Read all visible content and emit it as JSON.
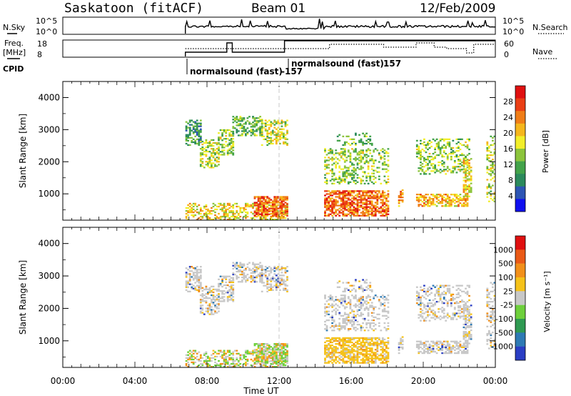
{
  "header": {
    "station": "Saskatoon (fitACF)",
    "beam": "Beam 01",
    "date": "12/Feb/2009"
  },
  "status_panels": {
    "nsky_label": "N.Sky",
    "freq_label_line1": "Freq.",
    "freq_label_line2": "[MHz]",
    "cpid_label": "CPID",
    "nsearch_label": "N.Search",
    "nave_label": "Nave",
    "nsky_ticks": [
      "10^5",
      "10^0"
    ],
    "nsearch_ticks": [
      "10^5",
      "10^0"
    ],
    "freq_ticks": [
      "18",
      "8"
    ],
    "nave_ticks": [
      "60",
      "0"
    ],
    "cpid_entries": [
      {
        "name": "normalsound (fast)",
        "id": "-157",
        "start_hour": 6.8
      },
      {
        "name": "normalsound (fast)",
        "id": "157",
        "start_hour": 12.3
      }
    ],
    "colors": {
      "trace": "#000000"
    }
  },
  "chart_data": [
    {
      "type": "heatmap",
      "name": "power",
      "title": "",
      "xlabel": "",
      "ylabel": "Slant Range [km]",
      "xlim": [
        0,
        24
      ],
      "ylim": [
        180,
        4500
      ],
      "y_ticks": [
        1000,
        2000,
        3000,
        4000
      ],
      "colorbar": {
        "label": "Power [dB]",
        "ticks": [
          "28",
          "24",
          "20",
          "16",
          "12",
          "8",
          "4"
        ],
        "colors": [
          "#1010f0",
          "#2d55b4",
          "#2b8a5c",
          "#43a34a",
          "#8cc43c",
          "#f2ee2a",
          "#f5b61c",
          "#f07d17",
          "#ea3e14",
          "#e01010"
        ]
      },
      "grid": false
    },
    {
      "type": "heatmap",
      "name": "velocity",
      "title": "",
      "xlabel": "Time UT",
      "ylabel": "Slant Range [km]",
      "xlim": [
        0,
        24
      ],
      "ylim": [
        180,
        4500
      ],
      "y_ticks": [
        1000,
        2000,
        3000,
        4000
      ],
      "x_ticks": [
        "00:00",
        "04:00",
        "08:00",
        "12:00",
        "16:00",
        "20:00",
        "00:00"
      ],
      "colorbar": {
        "label": "Velocity [m s⁻¹]",
        "ticks": [
          "1000",
          "500",
          "100",
          "25",
          "-25",
          "-100",
          "-500",
          "-1000"
        ],
        "colors": [
          "#2a3ec4",
          "#2e7ab4",
          "#2f9a52",
          "#6ed03c",
          "#c8c8c8",
          "#f5c21a",
          "#f2901a",
          "#ea5a16",
          "#e01010"
        ]
      },
      "grid": false
    }
  ]
}
